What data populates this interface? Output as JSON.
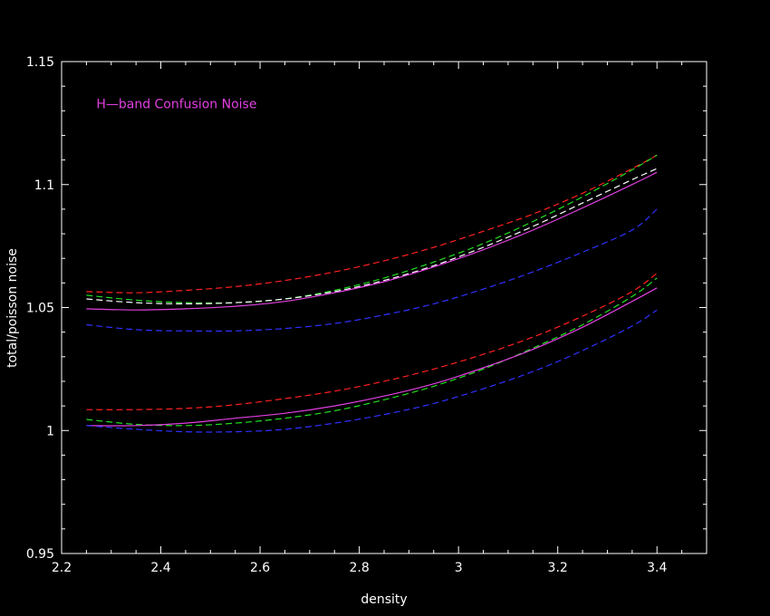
{
  "chart_data": {
    "type": "line",
    "title": "",
    "xlabel": "density",
    "ylabel": "total/poisson noise",
    "xlim": [
      2.2,
      3.5
    ],
    "ylim": [
      0.95,
      1.15
    ],
    "grid": false,
    "x_major_ticks": [
      2.2,
      2.4,
      2.6,
      2.8,
      3.0,
      3.2,
      3.4
    ],
    "x_tick_labels": [
      "2.2",
      "2.4",
      "2.6",
      "2.8",
      "3",
      "3.2",
      "3.4"
    ],
    "y_major_ticks": [
      0.95,
      1.0,
      1.05,
      1.1,
      1.15
    ],
    "y_tick_labels": [
      "0.95",
      "1",
      "1.05",
      "1.1",
      "1.15"
    ],
    "annotation": {
      "text": "H—band Confusion Noise",
      "color": "#e040e0",
      "data_x": 2.27,
      "data_y": 1.131
    },
    "x": [
      2.25,
      2.35,
      2.45,
      2.55,
      2.65,
      2.75,
      2.85,
      2.95,
      3.05,
      3.15,
      3.25,
      3.35,
      3.4
    ],
    "series": [
      {
        "color": "#ff2020",
        "style": "dashed",
        "values": [
          1.0565,
          1.056,
          1.057,
          1.0585,
          1.061,
          1.0645,
          1.069,
          1.0745,
          1.081,
          1.088,
          1.0965,
          1.1065,
          1.112
        ]
      },
      {
        "color": "#20e020",
        "style": "dashed",
        "values": [
          1.055,
          1.053,
          1.052,
          1.052,
          1.0535,
          1.057,
          1.062,
          1.0685,
          1.076,
          1.085,
          1.095,
          1.106,
          1.112
        ]
      },
      {
        "color": "#ffffff",
        "style": "dashed",
        "values": [
          1.0535,
          1.052,
          1.0515,
          1.052,
          1.0535,
          1.0565,
          1.061,
          1.067,
          1.0745,
          1.083,
          1.0925,
          1.102,
          1.1065
        ]
      },
      {
        "color": "#e040e0",
        "style": "solid",
        "values": [
          1.0495,
          1.049,
          1.0495,
          1.0505,
          1.0525,
          1.056,
          1.0605,
          1.0665,
          1.0735,
          1.0815,
          1.0905,
          1.1,
          1.105
        ]
      },
      {
        "color": "#3030ff",
        "style": "dashed",
        "values": [
          1.043,
          1.041,
          1.0405,
          1.0405,
          1.0415,
          1.0435,
          1.047,
          1.0515,
          1.0575,
          1.0645,
          1.0725,
          1.0815,
          1.09
        ]
      },
      {
        "color": "#ff2020",
        "style": "dashed",
        "values": [
          1.0085,
          1.0085,
          1.009,
          1.0105,
          1.013,
          1.016,
          1.02,
          1.025,
          1.031,
          1.038,
          1.0465,
          1.0565,
          1.064
        ]
      },
      {
        "color": "#20e020",
        "style": "dashed",
        "values": [
          1.0045,
          1.0025,
          1.002,
          1.003,
          1.005,
          1.008,
          1.0125,
          1.018,
          1.025,
          1.0335,
          1.043,
          1.0545,
          1.062
        ]
      },
      {
        "color": "#e040e0",
        "style": "solid",
        "values": [
          1.002,
          1.002,
          1.003,
          1.005,
          1.007,
          1.01,
          1.014,
          1.019,
          1.0255,
          1.033,
          1.042,
          1.0525,
          1.058
        ]
      },
      {
        "color": "#3030ff",
        "style": "dashed",
        "values": [
          1.002,
          1.0005,
          0.9995,
          0.9995,
          1.0005,
          1.003,
          1.0065,
          1.011,
          1.017,
          1.024,
          1.0325,
          1.0425,
          1.049
        ]
      }
    ]
  }
}
